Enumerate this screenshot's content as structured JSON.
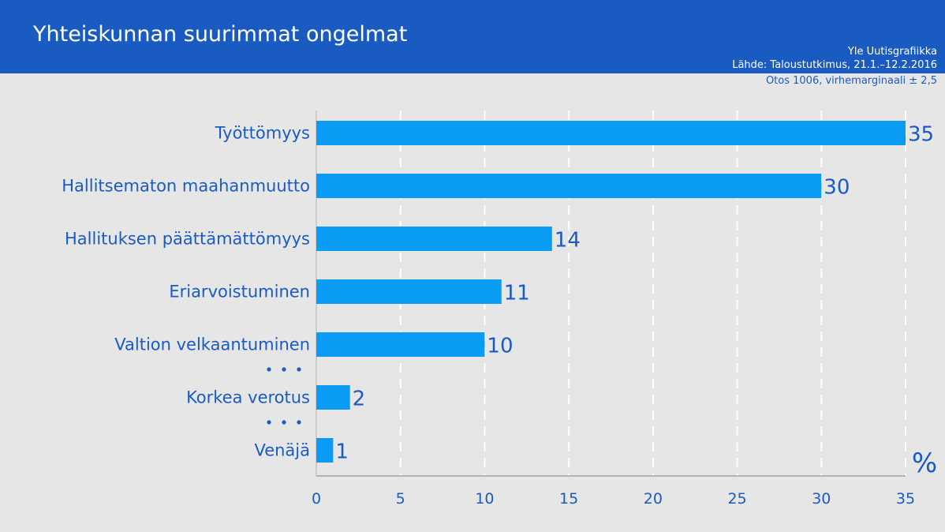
{
  "header": {
    "title": "Yhteiskunnan suurimmat ongelmat",
    "credit": "Yle Uutisgrafiikka",
    "source": "Lähde: Taloustutkimus, 21.1.–12.2.2016",
    "sample": "Otos 1006, virhemarginaali ± 2,5"
  },
  "colors": {
    "header_bg": "#1a5bc2",
    "background": "#e6e6e6",
    "bar": "#0a9cf5",
    "text": "#1a5bc2"
  },
  "chart_data": {
    "type": "bar",
    "orientation": "horizontal",
    "categories": [
      "Työttömyys",
      "Hallitsematon maahanmuutto",
      "Hallituksen päättämättömyys",
      "Eriarvoistuminen",
      "Valtion velkaantuminen",
      "Korkea verotus",
      "Venäjä"
    ],
    "values": [
      35,
      30,
      14,
      11,
      10,
      2,
      1
    ],
    "ellipsis_before": [
      "Korkea verotus",
      "Venäjä"
    ],
    "xlim": [
      0,
      35
    ],
    "xticks": [
      0,
      5,
      10,
      15,
      20,
      25,
      30,
      35
    ],
    "unit": "%",
    "grid": "vertical-dashed",
    "data_labels": true
  }
}
